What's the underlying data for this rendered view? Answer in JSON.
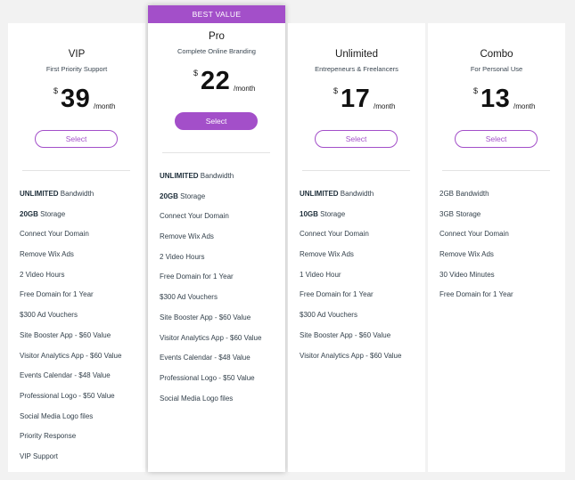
{
  "ribbon": "BEST VALUE",
  "plans": [
    {
      "name": "VIP",
      "subtitle": "First Priority Support",
      "currency": "$",
      "amount": "39",
      "period": "/month",
      "button": "Select",
      "features": [
        {
          "bold": "UNLIMITED",
          "text": " Bandwidth"
        },
        {
          "bold": "20GB",
          "text": " Storage"
        },
        {
          "bold": "",
          "text": "Connect Your Domain"
        },
        {
          "bold": "",
          "text": "Remove Wix Ads"
        },
        {
          "bold": "",
          "text": "2 Video Hours"
        },
        {
          "bold": "",
          "text": "Free Domain for 1 Year"
        },
        {
          "bold": "",
          "text": "$300 Ad Vouchers"
        },
        {
          "bold": "",
          "text": "Site Booster App - $60 Value"
        },
        {
          "bold": "",
          "text": "Visitor Analytics App - $60 Value"
        },
        {
          "bold": "",
          "text": "Events Calendar - $48 Value"
        },
        {
          "bold": "",
          "text": "Professional Logo - $50 Value"
        },
        {
          "bold": "",
          "text": "Social Media Logo files"
        },
        {
          "bold": "",
          "text": "Priority Response"
        },
        {
          "bold": "",
          "text": "VIP Support"
        }
      ]
    },
    {
      "name": "Pro",
      "subtitle": "Complete Online Branding",
      "currency": "$",
      "amount": "22",
      "period": "/month",
      "button": "Select",
      "features": [
        {
          "bold": "UNLIMITED",
          "text": " Bandwidth"
        },
        {
          "bold": "20GB",
          "text": " Storage"
        },
        {
          "bold": "",
          "text": "Connect Your Domain"
        },
        {
          "bold": "",
          "text": "Remove Wix Ads"
        },
        {
          "bold": "",
          "text": "2 Video Hours"
        },
        {
          "bold": "",
          "text": "Free Domain for 1 Year"
        },
        {
          "bold": "",
          "text": "$300 Ad Vouchers"
        },
        {
          "bold": "",
          "text": "Site Booster App - $60 Value"
        },
        {
          "bold": "",
          "text": "Visitor Analytics App - $60 Value"
        },
        {
          "bold": "",
          "text": "Events Calendar - $48 Value"
        },
        {
          "bold": "",
          "text": "Professional Logo - $50 Value"
        },
        {
          "bold": "",
          "text": "Social Media Logo files"
        }
      ]
    },
    {
      "name": "Unlimited",
      "subtitle": "Entrepeneurs & Freelancers",
      "currency": "$",
      "amount": "17",
      "period": "/month",
      "button": "Select",
      "features": [
        {
          "bold": "UNLIMITED",
          "text": " Bandwidth"
        },
        {
          "bold": "10GB",
          "text": " Storage"
        },
        {
          "bold": "",
          "text": "Connect Your Domain"
        },
        {
          "bold": "",
          "text": "Remove Wix Ads"
        },
        {
          "bold": "",
          "text": "1 Video Hour"
        },
        {
          "bold": "",
          "text": "Free Domain for 1 Year"
        },
        {
          "bold": "",
          "text": "$300 Ad Vouchers"
        },
        {
          "bold": "",
          "text": "Site Booster App - $60 Value"
        },
        {
          "bold": "",
          "text": "Visitor Analytics App - $60 Value"
        }
      ]
    },
    {
      "name": "Combo",
      "subtitle": "For Personal Use",
      "currency": "$",
      "amount": "13",
      "period": "/month",
      "button": "Select",
      "features": [
        {
          "bold": "",
          "text": "2GB Bandwidth"
        },
        {
          "bold": "",
          "text": "3GB Storage"
        },
        {
          "bold": "",
          "text": "Connect Your Domain"
        },
        {
          "bold": "",
          "text": "Remove Wix Ads"
        },
        {
          "bold": "",
          "text": "30 Video Minutes"
        },
        {
          "bold": "",
          "text": "Free Domain for 1 Year"
        }
      ]
    }
  ]
}
